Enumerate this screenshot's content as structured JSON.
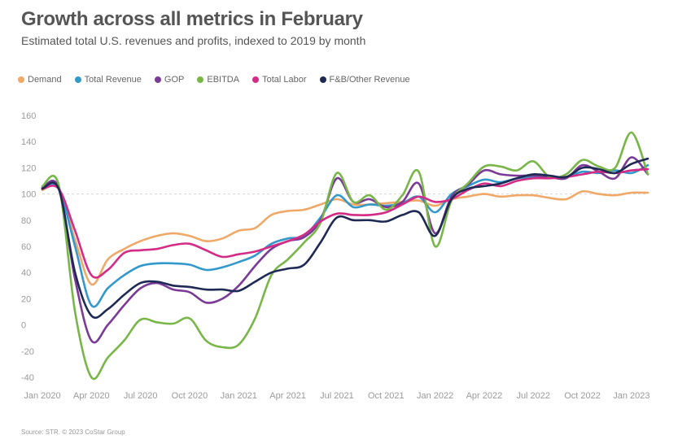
{
  "title": "Growth across all metrics in February",
  "subtitle": "Estimated total U.S. revenues and profits, indexed to 2019 by month",
  "source": "Source: STR. © 2023 CoStar Group",
  "chart_data": {
    "type": "line",
    "title": "Growth across all metrics in February",
    "subtitle": "Estimated total U.S. revenues and profits, indexed to 2019 by month",
    "xlabel": "",
    "ylabel": "",
    "ylim": [
      -40,
      160
    ],
    "yticks": [
      160,
      140,
      120,
      100,
      80,
      60,
      40,
      20,
      0,
      -20,
      -40
    ],
    "reference_line": 100,
    "grid": false,
    "legend_position": "top-left",
    "x": [
      "Jan 2020",
      "Feb 2020",
      "Mar 2020",
      "Apr 2020",
      "May 2020",
      "Jun 2020",
      "Jul 2020",
      "Aug 2020",
      "Sep 2020",
      "Oct 2020",
      "Nov 2020",
      "Dec 2020",
      "Jan 2021",
      "Feb 2021",
      "Mar 2021",
      "Apr 2021",
      "May 2021",
      "Jun 2021",
      "Jul 2021",
      "Aug 2021",
      "Sep 2021",
      "Oct 2021",
      "Nov 2021",
      "Dec 2021",
      "Jan 2022",
      "Feb 2022",
      "Mar 2022",
      "Apr 2022",
      "May 2022",
      "Jun 2022",
      "Jul 2022",
      "Aug 2022",
      "Sep 2022",
      "Oct 2022",
      "Nov 2022",
      "Dec 2022",
      "Jan 2023",
      "Feb 2023"
    ],
    "xtick_labels": [
      "Jan 2020",
      "Apr 2020",
      "Jul 2020",
      "Oct 2020",
      "Jan 2021",
      "Apr 2021",
      "Jul 2021",
      "Oct 2021",
      "Jan 2022",
      "Apr 2022",
      "Jul 2022",
      "Oct 2022",
      "Jan 2023"
    ],
    "series": [
      {
        "name": "Demand",
        "color": "#f0a868",
        "values": [
          103,
          104,
          65,
          31,
          50,
          58,
          64,
          68,
          70,
          68,
          64,
          66,
          72,
          74,
          84,
          87,
          88,
          92,
          96,
          92,
          92,
          93,
          94,
          95,
          91,
          96,
          98,
          100,
          98,
          99,
          99,
          97,
          96,
          102,
          100,
          99,
          101,
          101
        ]
      },
      {
        "name": "Total Revenue",
        "color": "#3399cc",
        "values": [
          104,
          104,
          60,
          15,
          28,
          38,
          45,
          47,
          47,
          46,
          42,
          44,
          48,
          53,
          62,
          66,
          68,
          82,
          99,
          90,
          92,
          91,
          93,
          98,
          86,
          100,
          106,
          111,
          109,
          112,
          113,
          113,
          113,
          117,
          116,
          118,
          116,
          122
        ]
      },
      {
        "name": "GOP",
        "color": "#7b3a96",
        "values": [
          105,
          105,
          35,
          -12,
          0,
          15,
          28,
          32,
          27,
          25,
          17,
          20,
          30,
          45,
          58,
          64,
          67,
          80,
          112,
          94,
          96,
          90,
          94,
          108,
          70,
          98,
          107,
          118,
          115,
          114,
          114,
          113,
          112,
          122,
          117,
          112,
          128,
          115
        ]
      },
      {
        "name": "EBITDA",
        "color": "#78b648",
        "values": [
          106,
          107,
          10,
          -40,
          -25,
          -12,
          4,
          2,
          1,
          5,
          -12,
          -17,
          -15,
          5,
          38,
          50,
          63,
          78,
          116,
          94,
          99,
          88,
          99,
          117,
          60,
          95,
          108,
          121,
          121,
          118,
          125,
          113,
          115,
          126,
          121,
          120,
          147,
          115
        ]
      },
      {
        "name": "Total Labor",
        "color": "#d42b86",
        "values": [
          104,
          104,
          72,
          38,
          42,
          55,
          57,
          58,
          61,
          62,
          57,
          52,
          54,
          56,
          60,
          64,
          69,
          79,
          85,
          84,
          84,
          86,
          92,
          98,
          94,
          96,
          103,
          108,
          106,
          110,
          112,
          112,
          113,
          115,
          117,
          116,
          118,
          119
        ]
      },
      {
        "name": "F&B/Other Revenue",
        "color": "#1e2a54",
        "values": [
          104,
          104,
          40,
          7,
          12,
          23,
          32,
          33,
          30,
          29,
          27,
          27,
          26,
          33,
          40,
          43,
          46,
          63,
          82,
          80,
          80,
          79,
          84,
          86,
          68,
          96,
          104,
          106,
          108,
          112,
          115,
          114,
          113,
          120,
          119,
          116,
          123,
          127
        ]
      }
    ]
  }
}
